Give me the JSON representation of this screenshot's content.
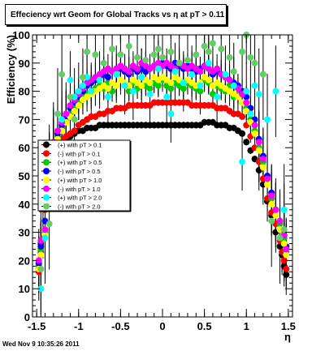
{
  "page": {
    "title": "Effeciency wrt Geom for Global Tracks vs    η at pT > 0.11",
    "footer": "Wed Nov  9 10:35:26 2011"
  },
  "chart_data": {
    "type": "scatter",
    "title": "Effeciency wrt Geom for Global Tracks vs    η at pT > 0.11",
    "xlabel": "η",
    "ylabel": "Efficiency (%)",
    "xlim": [
      -1.55,
      1.55
    ],
    "ylim": [
      0,
      100
    ],
    "xticks": [
      -1.5,
      -1,
      -0.5,
      0,
      0.5,
      1,
      1.5
    ],
    "yticks": [
      0,
      10,
      20,
      30,
      40,
      50,
      60,
      70,
      80,
      90,
      100
    ],
    "grid": false,
    "legend_position": "left-middle",
    "series": [
      {
        "name": "(+) with pT > 0.1",
        "color": "#000000",
        "marker": "circle",
        "x": [
          -1.475,
          -1.45,
          -1.425,
          -1.4,
          -1.35,
          -1.3,
          -1.25,
          -1.2,
          -1.15,
          -1.1,
          -1.05,
          -1.0,
          -0.95,
          -0.9,
          -0.85,
          -0.8,
          -0.75,
          -0.7,
          -0.65,
          -0.6,
          -0.55,
          -0.5,
          -0.45,
          -0.4,
          -0.35,
          -0.3,
          -0.25,
          -0.2,
          -0.15,
          -0.1,
          -0.05,
          0.0,
          0.05,
          0.1,
          0.15,
          0.2,
          0.25,
          0.3,
          0.35,
          0.4,
          0.45,
          0.5,
          0.55,
          0.6,
          0.65,
          0.7,
          0.75,
          0.8,
          0.85,
          0.9,
          0.95,
          1.0,
          1.05,
          1.1,
          1.15,
          1.2,
          1.25,
          1.3,
          1.35,
          1.4,
          1.425,
          1.45,
          1.475
        ],
        "values": [
          17,
          26,
          39,
          49,
          55,
          58,
          61,
          62,
          63,
          64,
          65,
          66,
          66,
          67,
          67,
          67,
          68,
          68,
          68,
          68,
          68,
          68,
          68,
          68,
          68,
          68,
          68,
          68,
          68,
          68,
          68,
          68,
          68,
          68,
          68,
          68,
          68,
          68,
          68,
          68,
          68,
          69,
          69,
          69,
          68,
          68,
          68,
          67,
          67,
          66,
          65,
          62,
          59,
          56,
          52,
          47,
          41,
          36,
          30,
          25,
          22,
          18,
          15
        ]
      },
      {
        "name": "(-) with pT > 0.1",
        "color": "#ff0000",
        "marker": "circle",
        "x": [
          -1.475,
          -1.45,
          -1.425,
          -1.4,
          -1.35,
          -1.3,
          -1.25,
          -1.2,
          -1.15,
          -1.1,
          -1.05,
          -1.0,
          -0.95,
          -0.9,
          -0.85,
          -0.8,
          -0.75,
          -0.7,
          -0.65,
          -0.6,
          -0.55,
          -0.5,
          -0.45,
          -0.4,
          -0.35,
          -0.3,
          -0.25,
          -0.2,
          -0.15,
          -0.1,
          -0.05,
          0.0,
          0.05,
          0.1,
          0.15,
          0.2,
          0.25,
          0.3,
          0.35,
          0.4,
          0.45,
          0.5,
          0.55,
          0.6,
          0.65,
          0.7,
          0.75,
          0.8,
          0.85,
          0.9,
          0.95,
          1.0,
          1.05,
          1.1,
          1.15,
          1.2,
          1.25,
          1.3,
          1.35,
          1.4,
          1.425,
          1.45,
          1.475
        ],
        "values": [
          16,
          23,
          28,
          38,
          57,
          60,
          62,
          63,
          64,
          65,
          66,
          68,
          69,
          70,
          71,
          71,
          72,
          72,
          73,
          73,
          74,
          74,
          74,
          75,
          75,
          75,
          75,
          75,
          75,
          76,
          76,
          76,
          76,
          76,
          76,
          76,
          76,
          76,
          75,
          75,
          75,
          75,
          75,
          75,
          74,
          74,
          74,
          73,
          72,
          72,
          71,
          68,
          64,
          60,
          55,
          49,
          42,
          37,
          33,
          27,
          23,
          20,
          17
        ]
      },
      {
        "name": "(+) with pT > 0.5",
        "color": "#00cc00",
        "marker": "circle",
        "x": [
          -1.475,
          -1.45,
          -1.4,
          -1.35,
          -1.3,
          -1.25,
          -1.2,
          -1.15,
          -1.1,
          -1.05,
          -1.0,
          -0.95,
          -0.9,
          -0.85,
          -0.8,
          -0.75,
          -0.7,
          -0.65,
          -0.6,
          -0.55,
          -0.5,
          -0.45,
          -0.4,
          -0.35,
          -0.3,
          -0.25,
          -0.2,
          -0.15,
          -0.1,
          -0.05,
          0.0,
          0.05,
          0.1,
          0.15,
          0.2,
          0.25,
          0.3,
          0.35,
          0.4,
          0.45,
          0.5,
          0.55,
          0.6,
          0.65,
          0.7,
          0.75,
          0.8,
          0.85,
          0.9,
          0.95,
          1.0,
          1.05,
          1.1,
          1.15,
          1.2,
          1.25,
          1.3,
          1.35,
          1.4,
          1.45,
          1.475
        ],
        "values": [
          18,
          24,
          30,
          55,
          60,
          64,
          67,
          70,
          72,
          74,
          76,
          78,
          79,
          80,
          81,
          82,
          81,
          83,
          80,
          82,
          84,
          82,
          80,
          83,
          81,
          82,
          82,
          81,
          83,
          82,
          84,
          82,
          81,
          83,
          82,
          81,
          83,
          82,
          81,
          80,
          84,
          83,
          79,
          82,
          81,
          80,
          82,
          78,
          79,
          76,
          74,
          70,
          66,
          60,
          55,
          49,
          42,
          38,
          33,
          28,
          23
        ]
      },
      {
        "name": "(-) with pT > 0.5",
        "color": "#0000ff",
        "marker": "circle",
        "x": [
          -1.475,
          -1.45,
          -1.4,
          -1.35,
          -1.3,
          -1.25,
          -1.2,
          -1.15,
          -1.1,
          -1.05,
          -1.0,
          -0.95,
          -0.9,
          -0.85,
          -0.8,
          -0.75,
          -0.7,
          -0.65,
          -0.6,
          -0.55,
          -0.5,
          -0.45,
          -0.4,
          -0.35,
          -0.3,
          -0.25,
          -0.2,
          -0.15,
          -0.1,
          -0.05,
          0.0,
          0.05,
          0.1,
          0.15,
          0.2,
          0.25,
          0.3,
          0.35,
          0.4,
          0.45,
          0.5,
          0.55,
          0.6,
          0.65,
          0.7,
          0.75,
          0.8,
          0.85,
          0.9,
          0.95,
          1.0,
          1.05,
          1.1,
          1.15,
          1.2,
          1.25,
          1.3,
          1.35,
          1.4,
          1.45,
          1.475
        ],
        "values": [
          19,
          25,
          34,
          56,
          61,
          65,
          68,
          71,
          74,
          76,
          78,
          80,
          82,
          83,
          84,
          85,
          86,
          85,
          87,
          86,
          88,
          87,
          86,
          88,
          87,
          88,
          87,
          88,
          89,
          88,
          90,
          89,
          88,
          90,
          89,
          88,
          89,
          88,
          87,
          88,
          89,
          88,
          86,
          87,
          86,
          85,
          84,
          83,
          82,
          80,
          78,
          74,
          70,
          63,
          57,
          50,
          44,
          38,
          34,
          29,
          25
        ]
      },
      {
        "name": "(+) with pT > 1.0",
        "color": "#ffff00",
        "marker": "circle",
        "x": [
          -1.475,
          -1.45,
          -1.4,
          -1.35,
          -1.3,
          -1.25,
          -1.2,
          -1.15,
          -1.1,
          -1.05,
          -1.0,
          -0.95,
          -0.9,
          -0.85,
          -0.8,
          -0.75,
          -0.7,
          -0.65,
          -0.6,
          -0.55,
          -0.5,
          -0.45,
          -0.4,
          -0.35,
          -0.3,
          -0.25,
          -0.2,
          -0.15,
          -0.1,
          -0.05,
          0.0,
          0.05,
          0.1,
          0.15,
          0.2,
          0.25,
          0.3,
          0.35,
          0.4,
          0.45,
          0.5,
          0.55,
          0.6,
          0.65,
          0.7,
          0.75,
          0.8,
          0.85,
          0.9,
          0.95,
          1.0,
          1.05,
          1.1,
          1.15,
          1.2,
          1.25,
          1.3,
          1.35,
          1.4,
          1.45,
          1.475
        ],
        "values": [
          17,
          22,
          29,
          54,
          59,
          63,
          66,
          69,
          71,
          73,
          75,
          77,
          78,
          79,
          80,
          81,
          82,
          81,
          83,
          82,
          84,
          83,
          82,
          84,
          83,
          82,
          84,
          83,
          85,
          84,
          85,
          84,
          83,
          85,
          84,
          83,
          84,
          83,
          82,
          83,
          85,
          84,
          82,
          83,
          82,
          81,
          80,
          79,
          78,
          76,
          73,
          69,
          65,
          59,
          53,
          47,
          40,
          36,
          31,
          26,
          22
        ]
      },
      {
        "name": "(-) with pT > 1.0",
        "color": "#ff00ff",
        "marker": "circle",
        "x": [
          -1.475,
          -1.45,
          -1.4,
          -1.35,
          -1.3,
          -1.25,
          -1.2,
          -1.15,
          -1.1,
          -1.05,
          -1.0,
          -0.95,
          -0.9,
          -0.85,
          -0.8,
          -0.75,
          -0.7,
          -0.65,
          -0.6,
          -0.55,
          -0.5,
          -0.45,
          -0.4,
          -0.35,
          -0.3,
          -0.25,
          -0.2,
          -0.15,
          -0.1,
          -0.05,
          0.0,
          0.05,
          0.1,
          0.15,
          0.2,
          0.25,
          0.3,
          0.35,
          0.4,
          0.45,
          0.5,
          0.55,
          0.6,
          0.65,
          0.7,
          0.75,
          0.8,
          0.85,
          0.9,
          0.95,
          1.0,
          1.05,
          1.1,
          1.15,
          1.2,
          1.25,
          1.3,
          1.35,
          1.4,
          1.45,
          1.475
        ],
        "values": [
          20,
          27,
          31,
          57,
          62,
          66,
          69,
          72,
          75,
          77,
          79,
          81,
          83,
          84,
          85,
          86,
          87,
          88,
          87,
          88,
          89,
          88,
          87,
          89,
          88,
          90,
          89,
          88,
          89,
          90,
          89,
          90,
          89,
          88,
          90,
          89,
          88,
          89,
          88,
          87,
          89,
          88,
          87,
          88,
          86,
          85,
          84,
          82,
          81,
          79,
          76,
          72,
          68,
          62,
          56,
          49,
          43,
          38,
          34,
          29,
          24
        ]
      },
      {
        "name": "(+) with pT > 2.0",
        "color": "#00ffff",
        "marker": "circle",
        "x": [
          -1.45,
          -1.4,
          -1.3,
          -1.2,
          -1.1,
          -1.05,
          -1.0,
          -0.95,
          -0.9,
          -0.85,
          -0.75,
          -0.65,
          -0.55,
          -0.45,
          -0.35,
          -0.25,
          -0.15,
          -0.05,
          0.05,
          0.1,
          0.15,
          0.25,
          0.35,
          0.45,
          0.55,
          0.65,
          0.75,
          0.85,
          0.95,
          1.0,
          1.05,
          1.1,
          1.15,
          1.25,
          1.35,
          1.45
        ],
        "values": [
          10,
          28,
          58,
          70,
          84,
          78,
          80,
          82,
          85,
          80,
          84,
          78,
          86,
          82,
          80,
          85,
          79,
          88,
          78,
          72,
          87,
          83,
          86,
          82,
          90,
          78,
          86,
          82,
          55,
          80,
          72,
          82,
          79,
          70,
          80,
          38
        ]
      },
      {
        "name": "(-) with pT > 2.0",
        "color": "#66cc66",
        "marker": "circle",
        "x": [
          -1.45,
          -1.35,
          -1.3,
          -1.25,
          -1.2,
          -1.1,
          -1.05,
          -0.95,
          -0.9,
          -0.8,
          -0.7,
          -0.6,
          -0.5,
          -0.4,
          -0.3,
          -0.2,
          -0.1,
          -0.05,
          0.0,
          0.1,
          0.2,
          0.3,
          0.4,
          0.5,
          0.55,
          0.6,
          0.7,
          0.8,
          0.85,
          0.95,
          1.0,
          1.05,
          1.1,
          1.2,
          1.3,
          1.4,
          1.45
        ],
        "values": [
          17,
          33,
          60,
          72,
          86,
          78,
          70,
          85,
          94,
          93,
          90,
          95,
          93,
          96,
          92,
          91,
          93,
          95,
          92,
          94,
          90,
          91,
          93,
          96,
          94,
          97,
          95,
          92,
          87,
          94,
          100,
          92,
          90,
          86,
          34,
          28,
          31
        ]
      }
    ],
    "plot_frame_color": "#000000"
  }
}
